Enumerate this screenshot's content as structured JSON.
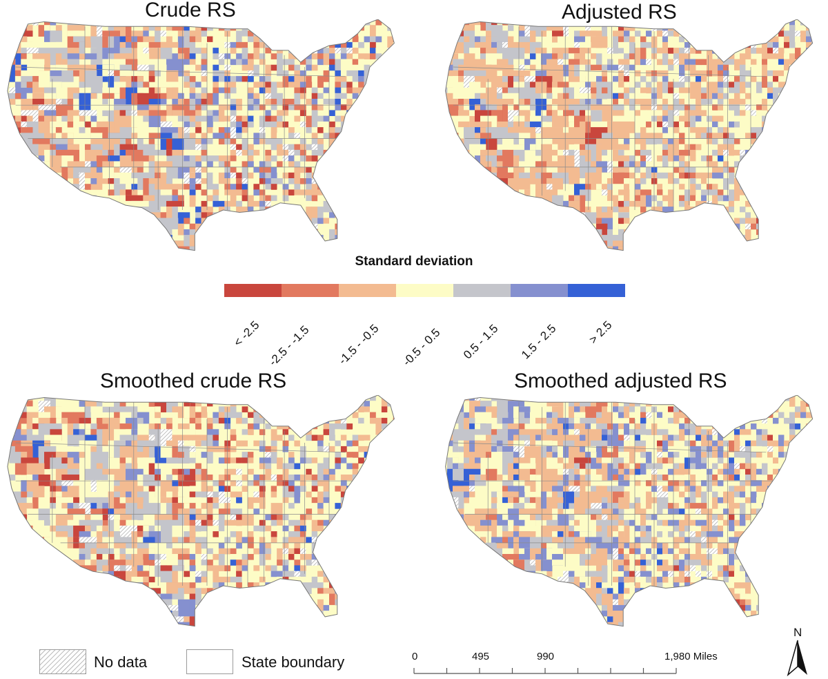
{
  "panels": [
    {
      "title": "Crude RS",
      "seed": 11
    },
    {
      "title": "Adjusted RS",
      "seed": 23
    },
    {
      "title": "Smoothed crude RS",
      "seed": 37
    },
    {
      "title": "Smoothed adjusted RS",
      "seed": 51
    }
  ],
  "legend": {
    "title": "Standard deviation",
    "classes": [
      {
        "label": "< -2.5",
        "color": "#c9463d"
      },
      {
        "label": "-2.5 - -1.5",
        "color": "#e2795f"
      },
      {
        "label": "-1.5 - -0.5",
        "color": "#f3bb91"
      },
      {
        "label": "-0.5 - 0.5",
        "color": "#fdfcc6"
      },
      {
        "label": "0.5 - 1.5",
        "color": "#c4c5cb"
      },
      {
        "label": "1.5 - 2.5",
        "color": "#8590cf"
      },
      {
        "label": ">  2.5",
        "color": "#3561d6"
      }
    ],
    "no_data_label": "No data",
    "state_boundary_label": "State boundary"
  },
  "scale_bar": {
    "labels": [
      "0",
      "495",
      "990",
      "1,980 Miles"
    ],
    "ticks": [
      0,
      247.5,
      495,
      742.5,
      990,
      1237.5,
      1485,
      1732.5,
      1980
    ]
  },
  "north_arrow": {
    "label": "N"
  }
}
